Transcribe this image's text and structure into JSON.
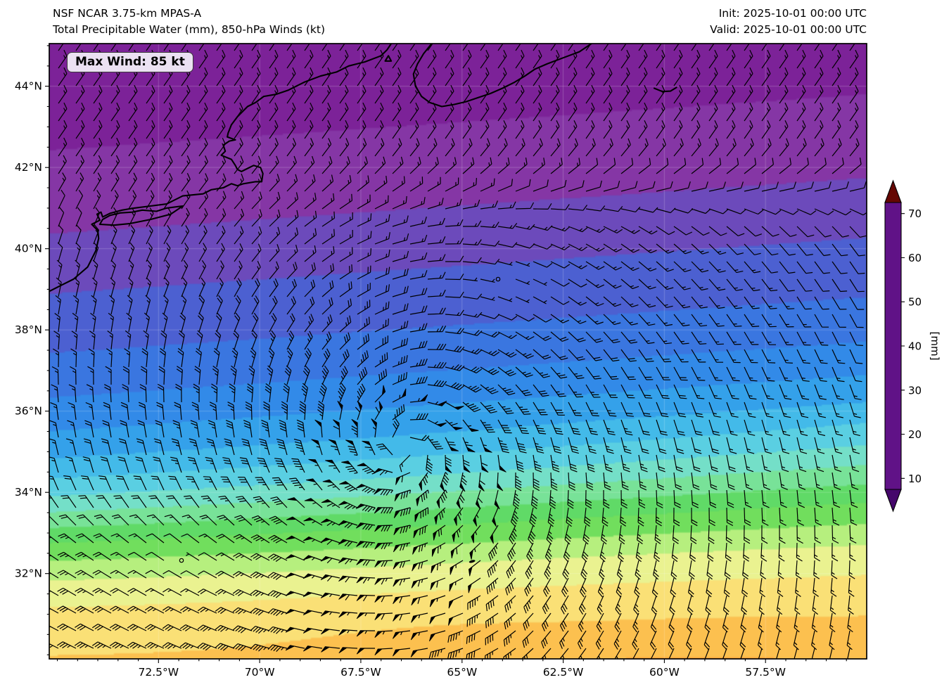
{
  "header": {
    "model_title": "NSF NCAR 3.75-km MPAS-A",
    "product_title": "Total Precipitable Water (mm), 850-hPa Winds (kt)",
    "init_time": "Init: 2025-10-01 00:00 UTC",
    "valid_time": "Valid: 2025-10-01 00:00 UTC"
  },
  "badge": {
    "max_wind_label": "Max Wind: 85 kt"
  },
  "chart_data": {
    "type": "heatmap",
    "title": "Total Precipitable Water (mm), 850-hPa Winds (kt)",
    "proj": {
      "lon_min": -75.2,
      "lon_max": -55.0,
      "lat_min": 29.9,
      "lat_max": 45.05
    },
    "x_axis": {
      "ticks": [
        {
          "label": "72.5°W",
          "lon": -72.5
        },
        {
          "label": "70°W",
          "lon": -70.0
        },
        {
          "label": "67.5°W",
          "lon": -67.5
        },
        {
          "label": "65°W",
          "lon": -65.0
        },
        {
          "label": "62.5°W",
          "lon": -62.5
        },
        {
          "label": "60°W",
          "lon": -60.0
        },
        {
          "label": "57.5°W",
          "lon": -57.5
        }
      ],
      "minor_step": 0.5
    },
    "y_axis": {
      "ticks": [
        {
          "label": "44°N",
          "lat": 44
        },
        {
          "label": "42°N",
          "lat": 42
        },
        {
          "label": "40°N",
          "lat": 40
        },
        {
          "label": "38°N",
          "lat": 38
        },
        {
          "label": "36°N",
          "lat": 36
        },
        {
          "label": "34°N",
          "lat": 34
        },
        {
          "label": "32°N",
          "lat": 32
        }
      ],
      "minor_step": 0.5
    },
    "colorbar": {
      "label": "[mm]",
      "ticks": [
        10,
        20,
        30,
        40,
        50,
        60,
        70
      ],
      "vmin": 7.5,
      "vmax": 72.5
    },
    "contour_interval_mm": 2.5,
    "colormap": [
      [
        6,
        "#45076b"
      ],
      [
        10,
        "#6d1895"
      ],
      [
        12.5,
        "#8c2d9c"
      ],
      [
        15,
        "#7e3fae"
      ],
      [
        17.5,
        "#5a55c8"
      ],
      [
        20,
        "#3f6cda"
      ],
      [
        22.5,
        "#3480e6"
      ],
      [
        25,
        "#2f94e9"
      ],
      [
        27.5,
        "#3aaeea"
      ],
      [
        30,
        "#4cc5e8"
      ],
      [
        32.5,
        "#69d9dd"
      ],
      [
        35,
        "#80e5b2"
      ],
      [
        37.5,
        "#70df7e"
      ],
      [
        40,
        "#50d450"
      ],
      [
        42.5,
        "#92e96a"
      ],
      [
        45,
        "#dbf593"
      ],
      [
        47.5,
        "#f8ee8d"
      ],
      [
        50,
        "#fdd35e"
      ],
      [
        52.5,
        "#fcad40"
      ],
      [
        55,
        "#f78c2c"
      ],
      [
        57.5,
        "#f1721c"
      ],
      [
        60,
        "#e55d11"
      ],
      [
        62.5,
        "#d6480d"
      ],
      [
        65,
        "#c1360a"
      ],
      [
        67.5,
        "#a82407"
      ],
      [
        70,
        "#8d1405"
      ],
      [
        74,
        "#650702"
      ]
    ],
    "tpw_model": {
      "base_profile": [
        [
          29.9,
          56.5
        ],
        [
          31,
          56
        ],
        [
          33,
          55
        ],
        [
          35,
          53.5
        ],
        [
          36.5,
          52
        ],
        [
          37.5,
          50
        ],
        [
          38.1,
          47.5
        ],
        [
          38.5,
          44.5
        ],
        [
          38.9,
          40
        ],
        [
          39.2,
          36
        ],
        [
          39.6,
          31
        ],
        [
          40.0,
          27
        ],
        [
          40.5,
          23.5
        ],
        [
          41.0,
          21
        ],
        [
          41.5,
          19
        ],
        [
          42.3,
          16.5
        ],
        [
          43.0,
          14
        ],
        [
          44.0,
          12
        ],
        [
          45.1,
          10.5
        ]
      ],
      "tilt_per_lon": 0.11,
      "tilt_ramp": {
        "lat0": 37.0,
        "range": 5.5,
        "min": 0.12,
        "max": 0.62
      },
      "blobs": [
        {
          "lat": 34.6,
          "lon": -66.8,
          "amp": 5,
          "sx": 4.5,
          "sy": 2.8
        },
        {
          "lat": 35.2,
          "lon": -67.2,
          "amp": 9,
          "sx": 2.6,
          "sy": 1.35
        },
        {
          "lat": 35.15,
          "lon": -68.4,
          "amp": 6,
          "sx": 0.95,
          "sy": 0.5
        },
        {
          "lat": 35.6,
          "lon": -66.5,
          "amp": 4.5,
          "sx": 1.5,
          "sy": 0.55
        },
        {
          "lat": 30.3,
          "lon": -74.6,
          "amp": 12,
          "sx": 1.7,
          "sy": 1.3
        },
        {
          "lat": 31.6,
          "lon": -72.8,
          "amp": 4,
          "sx": 1.2,
          "sy": 0.9
        },
        {
          "lat": 33.8,
          "lon": -58.3,
          "amp": -11,
          "sx": 2.2,
          "sy": 2.6
        },
        {
          "lat": 31.0,
          "lon": -57.9,
          "amp": -9,
          "sx": 1.6,
          "sy": 1.2
        },
        {
          "lat": 36.3,
          "lon": -56.2,
          "amp": -16,
          "sx": 1.9,
          "sy": 1.1
        },
        {
          "lat": 37.9,
          "lon": -59.5,
          "amp": 4,
          "sx": 3.2,
          "sy": 1.0
        },
        {
          "lat": 36.3,
          "lon": -70.5,
          "amp": 3,
          "sx": 1.8,
          "sy": 1.2
        },
        {
          "lat": 33.8,
          "lon": -73.3,
          "amp": -7,
          "sx": 1.9,
          "sy": 1.6
        },
        {
          "lat": 35.3,
          "lon": -71.9,
          "amp": -6,
          "sx": 1.4,
          "sy": 1.1
        },
        {
          "lat": 33.2,
          "lon": -70.2,
          "amp": -5,
          "sx": 1.3,
          "sy": 1.0
        },
        {
          "lat": 43.8,
          "lon": -59.8,
          "amp": 3.5,
          "sx": 2.0,
          "sy": 0.9
        },
        {
          "lat": 42.4,
          "lon": -56.8,
          "amp": 3,
          "sx": 1.5,
          "sy": 0.8
        },
        {
          "lat": 30.8,
          "lon": -55.8,
          "amp": -24,
          "sx": 1.1,
          "sy": 1.0
        }
      ]
    },
    "wind_model": {
      "vortex": {
        "lat": 35.1,
        "lon": -66.4,
        "vmax": 85,
        "rmax": 1.1,
        "decay": 0.8,
        "asym": 0.35,
        "inflow_deg": 12
      },
      "north_flow": {
        "u": -9,
        "v": -13,
        "lat_start": 40.2,
        "lat_full": 42.8
      },
      "south_jet": {
        "u": 18,
        "v": -2,
        "lat_full": 32.0,
        "lat_zero": 34.5,
        "lon_fade_start": -63,
        "lon_fade_range": 3
      },
      "lulls": [
        {
          "lat": 32.2,
          "lon": -71.8,
          "sx": 2.2,
          "sy": 1.4,
          "depth": 0.85
        },
        {
          "lat": 39.05,
          "lon": -64.1,
          "sx": 1.6,
          "sy": 1.0,
          "depth": 0.9
        }
      ],
      "calm_markers": [
        {
          "lat": 39.05,
          "lon": -64.3
        },
        {
          "lat": 39.05,
          "lon": -63.85
        },
        {
          "lat": 32.3,
          "lon": -71.95
        }
      ],
      "barb_spacing_px": 25,
      "max_wind_kt": 85
    },
    "geography": {
      "coastlines": [
        [
          [
            -75.2,
            38.95
          ],
          [
            -74.9,
            39.1
          ],
          [
            -74.6,
            39.25
          ],
          [
            -74.25,
            39.55
          ],
          [
            -74.05,
            39.95
          ],
          [
            -73.98,
            40.25
          ],
          [
            -74.0,
            40.45
          ],
          [
            -74.15,
            40.6
          ],
          [
            -74.05,
            40.65
          ],
          [
            -73.95,
            40.7
          ],
          [
            -74.02,
            40.85
          ],
          [
            -73.92,
            40.9
          ],
          [
            -73.88,
            40.78
          ],
          [
            -73.7,
            40.87
          ],
          [
            -73.4,
            40.95
          ],
          [
            -73.1,
            41.0
          ],
          [
            -72.7,
            41.05
          ],
          [
            -72.3,
            41.1
          ],
          [
            -71.9,
            41.3
          ],
          [
            -71.4,
            41.35
          ],
          [
            -71.2,
            41.45
          ],
          [
            -70.9,
            41.5
          ],
          [
            -70.7,
            41.6
          ],
          [
            -70.55,
            41.55
          ],
          [
            -70.4,
            41.6
          ],
          [
            -70.1,
            41.65
          ],
          [
            -69.95,
            41.65
          ],
          [
            -69.92,
            41.85
          ],
          [
            -69.98,
            42.0
          ],
          [
            -70.15,
            42.05
          ],
          [
            -70.35,
            41.95
          ],
          [
            -70.45,
            41.9
          ],
          [
            -70.55,
            41.95
          ],
          [
            -70.6,
            42.05
          ],
          [
            -70.7,
            42.2
          ],
          [
            -70.95,
            42.3
          ],
          [
            -70.85,
            42.4
          ],
          [
            -70.9,
            42.55
          ],
          [
            -70.75,
            42.65
          ],
          [
            -70.6,
            42.68
          ],
          [
            -70.8,
            42.75
          ],
          [
            -70.78,
            42.85
          ],
          [
            -70.7,
            43.05
          ],
          [
            -70.55,
            43.25
          ],
          [
            -70.3,
            43.5
          ],
          [
            -70.1,
            43.6
          ],
          [
            -69.9,
            43.75
          ],
          [
            -69.6,
            43.8
          ],
          [
            -69.3,
            43.9
          ],
          [
            -68.9,
            44.1
          ],
          [
            -68.5,
            44.25
          ],
          [
            -68.1,
            44.35
          ],
          [
            -67.8,
            44.5
          ],
          [
            -67.4,
            44.6
          ],
          [
            -67.0,
            44.75
          ],
          [
            -66.85,
            44.9
          ],
          [
            -66.75,
            45.05
          ]
        ],
        [
          [
            -73.95,
            40.6
          ],
          [
            -73.6,
            40.58
          ],
          [
            -73.2,
            40.62
          ],
          [
            -72.7,
            40.72
          ],
          [
            -72.2,
            40.85
          ],
          [
            -71.9,
            41.05
          ],
          [
            -72.3,
            41.0
          ],
          [
            -72.55,
            40.92
          ],
          [
            -72.9,
            40.95
          ],
          [
            -73.15,
            40.9
          ],
          [
            -73.45,
            40.88
          ],
          [
            -73.7,
            40.82
          ],
          [
            -73.88,
            40.72
          ],
          [
            -73.95,
            40.6
          ]
        ],
        [
          [
            -65.75,
            45.05
          ],
          [
            -65.95,
            44.8
          ],
          [
            -66.1,
            44.55
          ],
          [
            -66.2,
            44.3
          ],
          [
            -66.15,
            44.0
          ],
          [
            -66.0,
            43.75
          ],
          [
            -65.8,
            43.6
          ],
          [
            -65.5,
            43.5
          ],
          [
            -65.2,
            43.55
          ],
          [
            -64.9,
            43.62
          ],
          [
            -64.6,
            43.72
          ],
          [
            -64.3,
            43.82
          ],
          [
            -64.0,
            43.95
          ],
          [
            -63.7,
            44.1
          ],
          [
            -63.45,
            44.25
          ],
          [
            -63.2,
            44.42
          ],
          [
            -62.9,
            44.55
          ],
          [
            -62.5,
            44.7
          ],
          [
            -62.1,
            44.85
          ],
          [
            -61.8,
            45.05
          ]
        ],
        [
          [
            -60.25,
            43.95
          ],
          [
            -60.05,
            43.87
          ],
          [
            -59.85,
            43.88
          ],
          [
            -59.7,
            43.97
          ]
        ],
        [
          [
            -66.9,
            44.62
          ],
          [
            -66.82,
            44.75
          ],
          [
            -66.75,
            44.62
          ],
          [
            -66.9,
            44.62
          ]
        ]
      ],
      "bermuda": {
        "lat": 32.3,
        "lon": -64.75
      }
    },
    "style": {
      "coastline_color": "#000000",
      "barb_color": "#000000",
      "gridline_color": "rgba(255,255,255,0.22)",
      "axis_color": "#000000",
      "badge_bg": "#ebe1f2"
    }
  }
}
